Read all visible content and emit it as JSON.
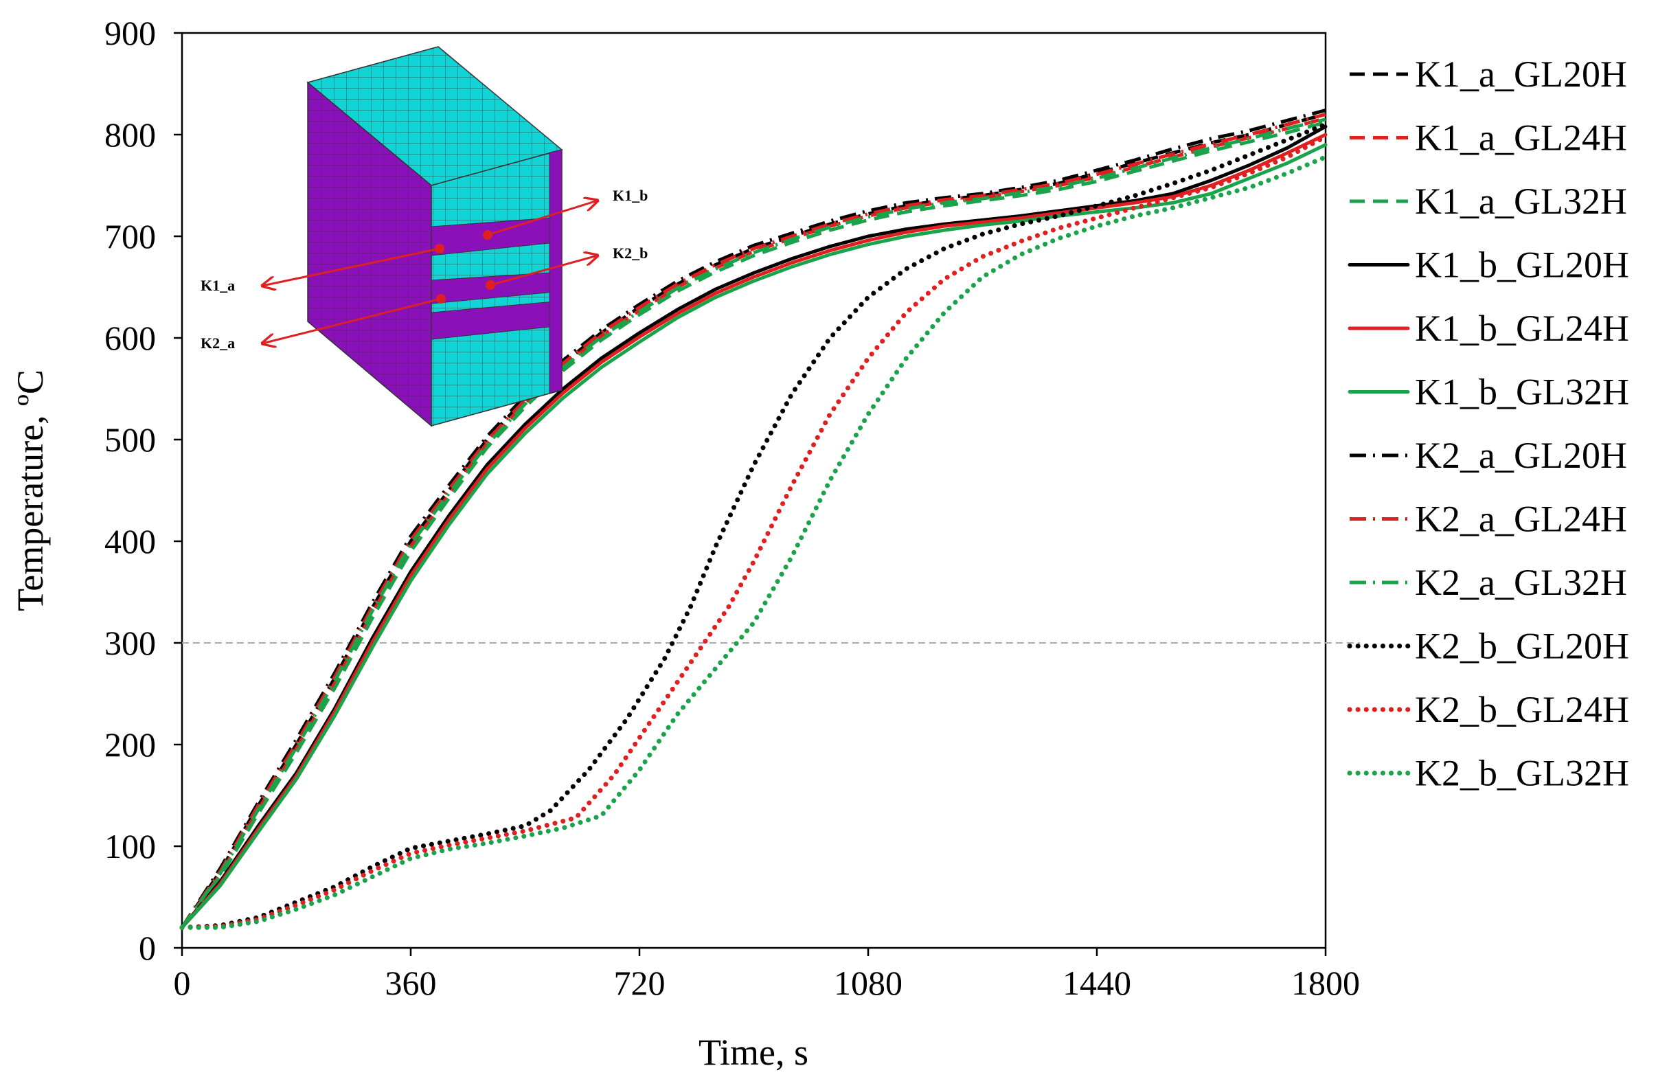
{
  "chart_data": {
    "type": "line",
    "title": "",
    "xlabel": "Time, s",
    "ylabel": "Temperature, ºC",
    "xlim": [
      0,
      1800
    ],
    "ylim": [
      0,
      900
    ],
    "xticks": [
      "0",
      "360",
      "720",
      "1080",
      "1440",
      "1800"
    ],
    "yticks": [
      "0",
      "100",
      "200",
      "300",
      "400",
      "500",
      "600",
      "700",
      "800",
      "900"
    ],
    "reference_line": 300,
    "legend_position": "right",
    "series": [
      {
        "name": "K1_a_GL20H",
        "color": "#000000",
        "dash": "dashed",
        "x": [
          0,
          60,
          120,
          180,
          240,
          300,
          360,
          420,
          480,
          540,
          600,
          660,
          720,
          780,
          840,
          900,
          960,
          1020,
          1080,
          1140,
          1200,
          1260,
          1320,
          1380,
          1440,
          1500,
          1560,
          1620,
          1680,
          1740,
          1800
        ],
        "y": [
          20,
          75,
          140,
          200,
          265,
          335,
          400,
          450,
          500,
          540,
          575,
          605,
          630,
          653,
          672,
          688,
          700,
          712,
          722,
          730,
          736,
          740,
          746,
          752,
          762,
          772,
          782,
          792,
          800,
          810,
          820
        ]
      },
      {
        "name": "K1_a_GL24H",
        "color": "#e02020",
        "dash": "dashed",
        "x": [
          0,
          60,
          120,
          180,
          240,
          300,
          360,
          420,
          480,
          540,
          600,
          660,
          720,
          780,
          840,
          900,
          960,
          1020,
          1080,
          1140,
          1200,
          1260,
          1320,
          1380,
          1440,
          1500,
          1560,
          1620,
          1680,
          1740,
          1800
        ],
        "y": [
          20,
          72,
          136,
          196,
          260,
          330,
          395,
          446,
          496,
          536,
          572,
          602,
          627,
          650,
          669,
          685,
          698,
          710,
          720,
          728,
          734,
          738,
          744,
          750,
          758,
          768,
          778,
          788,
          797,
          806,
          816
        ]
      },
      {
        "name": "K1_a_GL32H",
        "color": "#1aa34a",
        "dash": "dashed",
        "x": [
          0,
          60,
          120,
          180,
          240,
          300,
          360,
          420,
          480,
          540,
          600,
          660,
          720,
          780,
          840,
          900,
          960,
          1020,
          1080,
          1140,
          1200,
          1260,
          1320,
          1380,
          1440,
          1500,
          1560,
          1620,
          1680,
          1740,
          1800
        ],
        "y": [
          20,
          70,
          132,
          192,
          255,
          325,
          390,
          442,
          492,
          532,
          568,
          598,
          623,
          646,
          665,
          681,
          694,
          706,
          716,
          724,
          730,
          735,
          740,
          746,
          754,
          764,
          774,
          784,
          793,
          802,
          812
        ]
      },
      {
        "name": "K1_b_GL20H",
        "color": "#000000",
        "dash": "solid",
        "x": [
          0,
          60,
          120,
          180,
          240,
          300,
          360,
          420,
          480,
          540,
          600,
          660,
          720,
          780,
          840,
          900,
          960,
          1020,
          1080,
          1140,
          1200,
          1260,
          1320,
          1380,
          1440,
          1500,
          1560,
          1620,
          1680,
          1740,
          1800
        ],
        "y": [
          20,
          65,
          120,
          172,
          235,
          305,
          370,
          425,
          475,
          515,
          550,
          580,
          605,
          628,
          648,
          664,
          678,
          690,
          700,
          707,
          712,
          716,
          720,
          725,
          730,
          735,
          742,
          755,
          770,
          787,
          808
        ]
      },
      {
        "name": "K1_b_GL24H",
        "color": "#e02020",
        "dash": "solid",
        "x": [
          0,
          60,
          120,
          180,
          240,
          300,
          360,
          420,
          480,
          540,
          600,
          660,
          720,
          780,
          840,
          900,
          960,
          1020,
          1080,
          1140,
          1200,
          1260,
          1320,
          1380,
          1440,
          1500,
          1560,
          1620,
          1680,
          1740,
          1800
        ],
        "y": [
          20,
          63,
          117,
          169,
          232,
          301,
          366,
          421,
          471,
          511,
          546,
          576,
          601,
          624,
          644,
          660,
          674,
          686,
          696,
          704,
          710,
          714,
          718,
          723,
          728,
          733,
          739,
          750,
          765,
          782,
          800
        ]
      },
      {
        "name": "K1_b_GL32H",
        "color": "#1aa34a",
        "dash": "solid",
        "x": [
          0,
          60,
          120,
          180,
          240,
          300,
          360,
          420,
          480,
          540,
          600,
          660,
          720,
          780,
          840,
          900,
          960,
          1020,
          1080,
          1140,
          1200,
          1260,
          1320,
          1380,
          1440,
          1500,
          1560,
          1620,
          1680,
          1740,
          1800
        ],
        "y": [
          20,
          61,
          114,
          166,
          228,
          296,
          361,
          416,
          466,
          506,
          541,
          571,
          596,
          620,
          640,
          656,
          670,
          682,
          692,
          700,
          706,
          711,
          715,
          720,
          724,
          728,
          733,
          742,
          757,
          772,
          790
        ]
      },
      {
        "name": "K2_a_GL20H",
        "color": "#000000",
        "dash": "dashdot",
        "x": [
          0,
          60,
          120,
          180,
          240,
          300,
          360,
          420,
          480,
          540,
          600,
          660,
          720,
          780,
          840,
          900,
          960,
          1020,
          1080,
          1140,
          1200,
          1260,
          1320,
          1380,
          1440,
          1500,
          1560,
          1620,
          1680,
          1740,
          1800
        ],
        "y": [
          20,
          78,
          143,
          205,
          270,
          340,
          405,
          455,
          503,
          543,
          578,
          608,
          633,
          656,
          675,
          691,
          703,
          715,
          725,
          733,
          738,
          742,
          748,
          755,
          765,
          775,
          786,
          796,
          804,
          814,
          824
        ]
      },
      {
        "name": "K2_a_GL24H",
        "color": "#e02020",
        "dash": "dashdot",
        "x": [
          0,
          60,
          120,
          180,
          240,
          300,
          360,
          420,
          480,
          540,
          600,
          660,
          720,
          780,
          840,
          900,
          960,
          1020,
          1080,
          1140,
          1200,
          1260,
          1320,
          1380,
          1440,
          1500,
          1560,
          1620,
          1680,
          1740,
          1800
        ],
        "y": [
          20,
          75,
          140,
          201,
          266,
          336,
          401,
          451,
          499,
          539,
          575,
          605,
          630,
          653,
          672,
          688,
          700,
          712,
          722,
          730,
          736,
          740,
          746,
          752,
          761,
          771,
          781,
          791,
          800,
          810,
          820
        ]
      },
      {
        "name": "K2_a_GL32H",
        "color": "#1aa34a",
        "dash": "dashdot",
        "x": [
          0,
          60,
          120,
          180,
          240,
          300,
          360,
          420,
          480,
          540,
          600,
          660,
          720,
          780,
          840,
          900,
          960,
          1020,
          1080,
          1140,
          1200,
          1260,
          1320,
          1380,
          1440,
          1500,
          1560,
          1620,
          1680,
          1740,
          1800
        ],
        "y": [
          20,
          73,
          136,
          197,
          262,
          332,
          397,
          447,
          495,
          535,
          571,
          601,
          626,
          649,
          668,
          684,
          697,
          709,
          719,
          727,
          733,
          737,
          743,
          749,
          757,
          767,
          777,
          787,
          796,
          806,
          815
        ]
      },
      {
        "name": "K2_b_GL20H",
        "color": "#000000",
        "dash": "dotted",
        "x": [
          0,
          60,
          120,
          180,
          240,
          300,
          360,
          420,
          480,
          540,
          580,
          640,
          700,
          760,
          800,
          840,
          900,
          960,
          1020,
          1080,
          1140,
          1200,
          1260,
          1320,
          1380,
          1440,
          1500,
          1560,
          1620,
          1680,
          1740,
          1800
        ],
        "y": [
          20,
          22,
          30,
          45,
          60,
          80,
          98,
          105,
          112,
          120,
          135,
          175,
          225,
          285,
          335,
          395,
          475,
          545,
          600,
          640,
          668,
          688,
          702,
          712,
          720,
          730,
          740,
          752,
          765,
          780,
          795,
          810
        ]
      },
      {
        "name": "K2_b_GL24H",
        "color": "#e02020",
        "dash": "dotted",
        "x": [
          0,
          60,
          120,
          180,
          240,
          300,
          360,
          420,
          480,
          540,
          620,
          680,
          740,
          800,
          860,
          900,
          960,
          1020,
          1080,
          1140,
          1200,
          1260,
          1320,
          1380,
          1440,
          1500,
          1560,
          1620,
          1680,
          1740,
          1800
        ],
        "y": [
          20,
          21,
          28,
          42,
          57,
          76,
          93,
          101,
          108,
          115,
          128,
          170,
          225,
          280,
          335,
          380,
          455,
          525,
          580,
          625,
          658,
          680,
          695,
          708,
          718,
          728,
          738,
          748,
          762,
          778,
          798
        ]
      },
      {
        "name": "K2_b_GL32H",
        "color": "#1aa34a",
        "dash": "dotted",
        "x": [
          0,
          60,
          120,
          180,
          240,
          300,
          360,
          420,
          480,
          540,
          600,
          660,
          720,
          780,
          840,
          900,
          960,
          1020,
          1080,
          1140,
          1200,
          1260,
          1320,
          1380,
          1440,
          1500,
          1560,
          1620,
          1680,
          1740,
          1800
        ],
        "y": [
          20,
          20,
          26,
          38,
          52,
          70,
          88,
          97,
          103,
          110,
          118,
          130,
          175,
          230,
          275,
          320,
          385,
          460,
          525,
          580,
          625,
          660,
          682,
          698,
          710,
          720,
          728,
          738,
          748,
          762,
          778
        ]
      }
    ]
  },
  "inset": {
    "labels": {
      "k1a": "K1_a",
      "k2a": "K2_a",
      "k1b": "K1_b",
      "k2b": "K2_b"
    },
    "colors": {
      "timber": "#8a10b8",
      "layer": "#13d4d4",
      "arrow": "#e02020"
    }
  }
}
